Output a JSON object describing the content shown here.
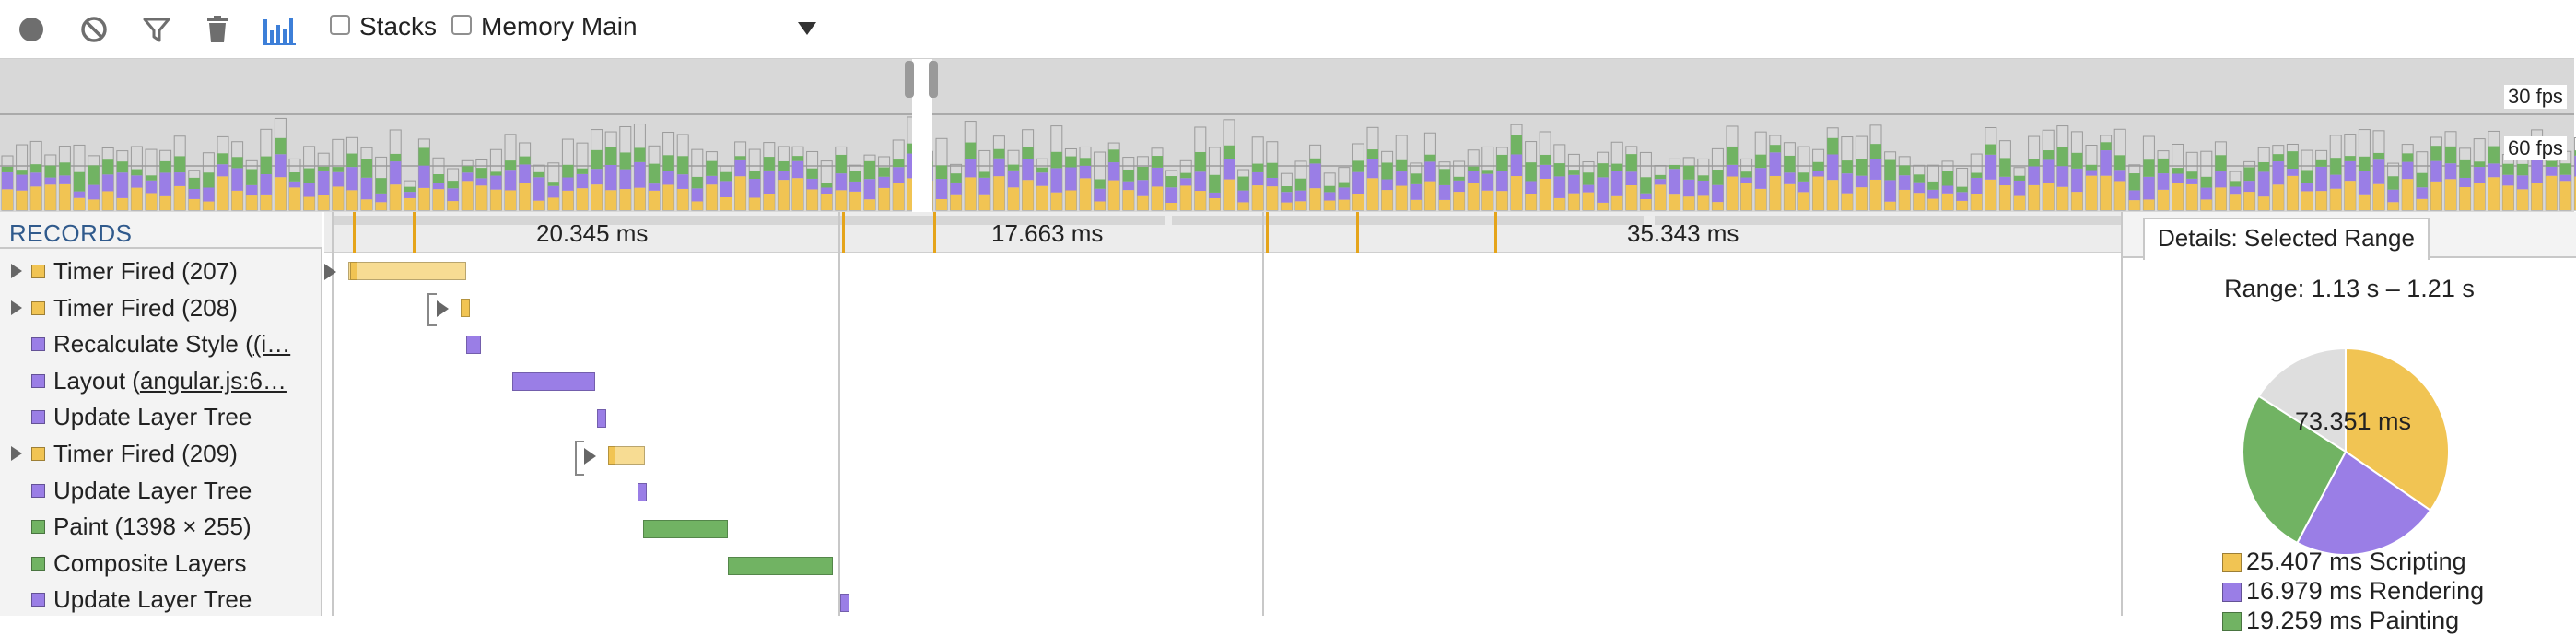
{
  "colors": {
    "scripting": "#f1c453",
    "scripting_light": "#f7dc93",
    "rendering": "#9a7ee6",
    "painting": "#71b363",
    "other": "#dedede",
    "tick": "#e5a41a",
    "toolbar_blue": "#3d7fd8"
  },
  "toolbar": {
    "icons": [
      "record-icon",
      "clear-icon",
      "filter-icon",
      "trash-icon",
      "flame-chart-icon"
    ],
    "stacks_label": "Stacks",
    "memory_label": "Memory Main"
  },
  "overview": {
    "fps_30_label": "30 fps",
    "fps_60_label": "60 fps"
  },
  "records": {
    "header": "RECORDS",
    "items": [
      {
        "label": "Timer Fired (207)",
        "type": "scripting",
        "expandable": true
      },
      {
        "label": "Timer Fired (208)",
        "type": "scripting",
        "expandable": true
      },
      {
        "label": "Recalculate Style (",
        "link": "(i…",
        "type": "rendering",
        "expandable": false
      },
      {
        "label": "Layout (",
        "link": "angular.js:6…",
        "type": "rendering",
        "expandable": false
      },
      {
        "label": "Update Layer Tree",
        "type": "rendering",
        "expandable": false
      },
      {
        "label": "Timer Fired (209)",
        "type": "scripting",
        "expandable": true
      },
      {
        "label": "Update Layer Tree",
        "type": "rendering",
        "expandable": false
      },
      {
        "label": "Paint (1398 × 255)",
        "type": "painting",
        "expandable": false
      },
      {
        "label": "Composite Layers",
        "type": "painting",
        "expandable": false
      },
      {
        "label": "Update Layer Tree",
        "type": "rendering",
        "expandable": false
      }
    ]
  },
  "timeline": {
    "frame_durations": [
      "20.345 ms",
      "17.663 ms",
      "35.343 ms"
    ]
  },
  "details": {
    "tab_label": "Details: Selected Range",
    "range_text": "Range: 1.13 s – 1.21 s",
    "total": "73.351 ms",
    "breakdown": [
      {
        "value": "25.407 ms",
        "label": "Scripting",
        "type": "scripting",
        "ms": 25.407
      },
      {
        "value": "16.979 ms",
        "label": "Rendering",
        "type": "rendering",
        "ms": 16.979
      },
      {
        "value": "19.259 ms",
        "label": "Painting",
        "type": "painting",
        "ms": 19.259
      }
    ],
    "other_ms": 11.706
  }
}
